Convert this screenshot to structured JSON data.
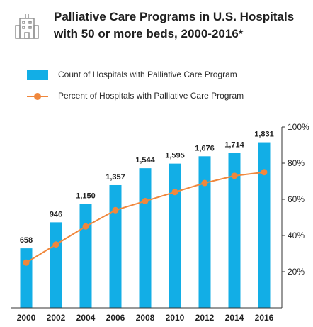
{
  "title": "Palliative Care Programs in U.S. Hospitals with 50 or more beds, 2000-2016*",
  "icon": "hospital-building-icon",
  "colors": {
    "bar": "#12aee6",
    "line": "#f0873c",
    "axis": "#333333"
  },
  "legend": {
    "bars": "Count of Hospitals with Palliative Care Program",
    "line": "Percent of Hospitals with Palliative Care Program"
  },
  "chart_data": {
    "type": "bar",
    "categories": [
      "2000",
      "2002",
      "2004",
      "2006",
      "2008",
      "2010",
      "2012",
      "2014",
      "2016"
    ],
    "series": [
      {
        "name": "Count of Hospitals with Palliative Care Program",
        "type": "bar",
        "values": [
          658,
          946,
          1150,
          1357,
          1544,
          1595,
          1676,
          1714,
          1831
        ],
        "labels": [
          "658",
          "946",
          "1,150",
          "1,357",
          "1,544",
          "1,595",
          "1,676",
          "1,714",
          "1,831"
        ]
      },
      {
        "name": "Percent of Hospitals with Palliative Care Program",
        "type": "line",
        "axis": "right",
        "values": [
          25,
          35,
          45,
          54,
          59,
          64,
          69,
          73,
          75
        ]
      }
    ],
    "y_right": {
      "ticks": [
        "20%",
        "40%",
        "60%",
        "80%",
        "100%"
      ],
      "tick_values": [
        20,
        40,
        60,
        80,
        100
      ],
      "ylim": [
        0,
        100
      ]
    },
    "ylim_left": [
      0,
      2000
    ],
    "grid": false
  }
}
